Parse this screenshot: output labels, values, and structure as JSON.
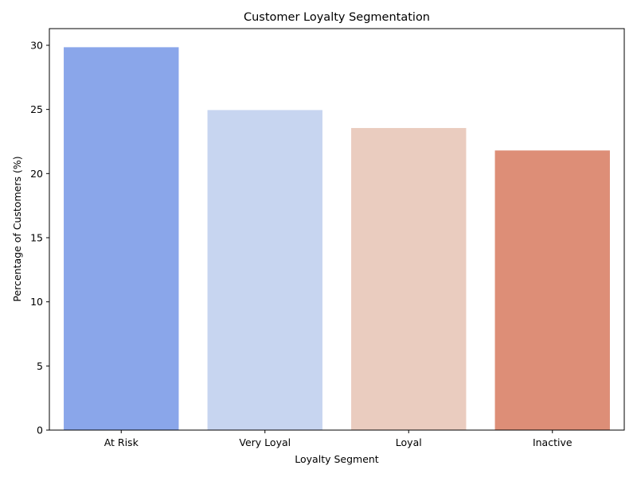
{
  "chart_data": {
    "type": "bar",
    "title": "Customer Loyalty Segmentation",
    "xlabel": "Loyalty Segment",
    "ylabel": "Percentage of Customers (%)",
    "categories": [
      "At Risk",
      "Very Loyal",
      "Loyal",
      "Inactive"
    ],
    "values": [
      29.85,
      24.95,
      23.55,
      21.8
    ],
    "colors": [
      "#8aa6ea",
      "#c7d5f0",
      "#eaccbf",
      "#dd8e77"
    ],
    "ylim": [
      0,
      31.3
    ],
    "yticks": [
      0,
      5,
      10,
      15,
      20,
      25,
      30
    ],
    "grid": false,
    "legend": "none"
  }
}
